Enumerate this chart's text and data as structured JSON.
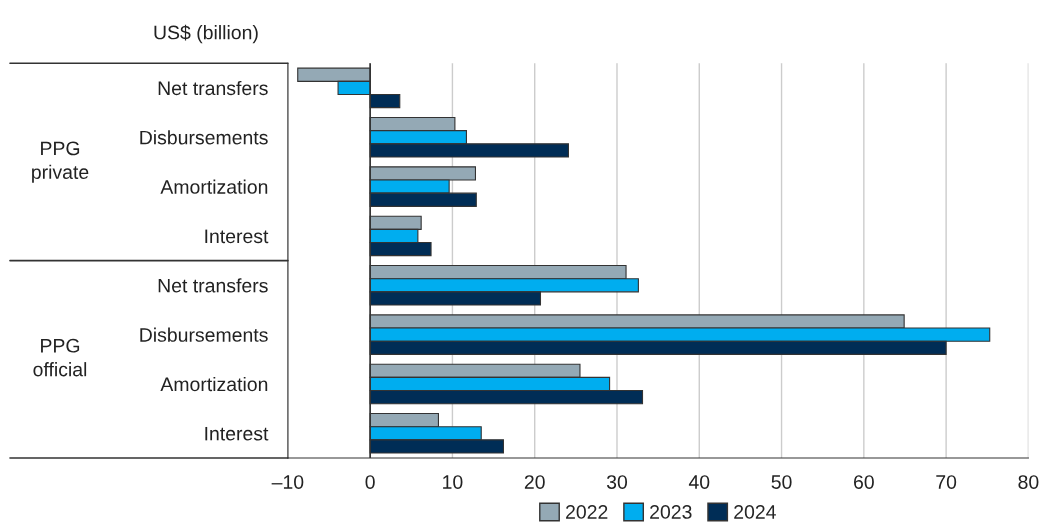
{
  "chart_data": {
    "type": "bar",
    "orientation": "horizontal",
    "categories": [
      "Net transfers",
      "Disbursements",
      "Amortization",
      "Interest",
      "Net transfers",
      "Disbursements",
      "Amortization",
      "Interest"
    ],
    "series": [
      {
        "name": "2022",
        "color": "#94a9b5",
        "values": [
          -8.8,
          10.3,
          12.8,
          6.2,
          31.1,
          64.9,
          25.5,
          8.3
        ]
      },
      {
        "name": "2023",
        "color": "#00adef",
        "values": [
          -3.9,
          11.7,
          9.6,
          5.8,
          32.6,
          75.3,
          29.1,
          13.5
        ]
      },
      {
        "name": "2024",
        "color": "#002d56",
        "values": [
          3.6,
          24.1,
          12.9,
          7.4,
          20.7,
          70.0,
          33.1,
          16.2
        ]
      }
    ],
    "annotations": [
      "US$ (billion)",
      "PPG\nprivate",
      "PPG\nofficial"
    ],
    "xlim": [
      -10,
      80
    ],
    "xticks": [
      {
        "value": -10,
        "label": "–10"
      },
      0,
      10,
      20,
      30,
      40,
      50,
      60,
      70,
      80
    ],
    "ref_lines": [
      {
        "axis": "x",
        "value": 0,
        "color": "#333333"
      }
    ],
    "grid": "x",
    "legend": "bottom"
  }
}
